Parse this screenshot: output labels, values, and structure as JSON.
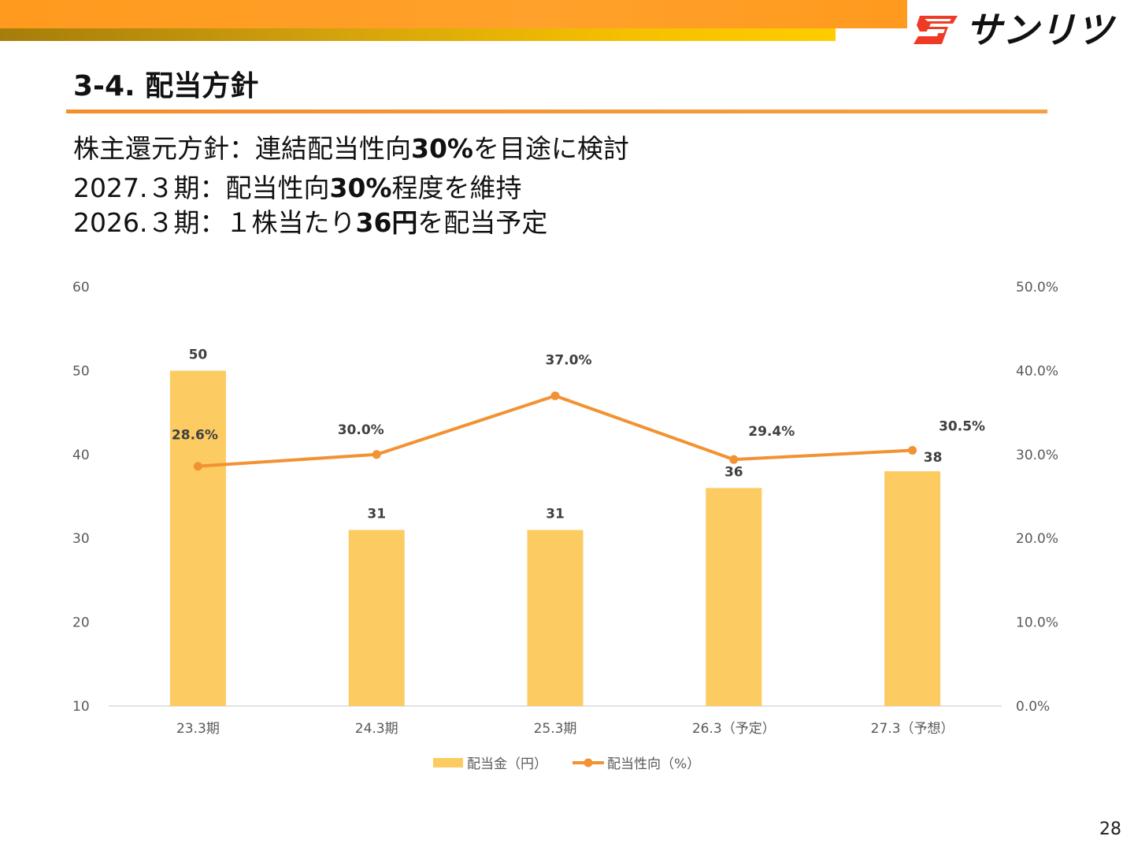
{
  "header": {
    "brand_text": "サンリツ",
    "brand_mark": "sanritsu-logo-icon"
  },
  "page_title": "3-4. 配当方針",
  "bullets": [
    {
      "pre": "株主還元方針：連結配当性向",
      "bold": "30%",
      "post": "を目途に検討"
    },
    {
      "pre": "2027.３期：配当性向",
      "bold": "30%",
      "post": "程度を維持"
    },
    {
      "pre": "2026.３期：１株当たり",
      "bold": "36円",
      "post": "を配当予定"
    }
  ],
  "chart_data": {
    "type": "bar",
    "categories": [
      "23.3期",
      "24.3期",
      "25.3期",
      "26.3（予定）",
      "27.3（予想）"
    ],
    "series": [
      {
        "name": "配当金（円）",
        "type": "bar",
        "axis": "left",
        "values": [
          50,
          31,
          31,
          36,
          38
        ],
        "labels": [
          "50",
          "31",
          "31",
          "36",
          "38"
        ],
        "color": "#fccb62"
      },
      {
        "name": "配当性向（%）",
        "type": "line",
        "axis": "right",
        "values": [
          28.6,
          30.0,
          37.0,
          29.4,
          30.5
        ],
        "labels": [
          "28.6%",
          "30.0%",
          "37.0%",
          "29.4%",
          "30.5%"
        ],
        "color": "#f29233"
      }
    ],
    "y_left": {
      "min": 10,
      "max": 60,
      "ticks": [
        "10",
        "20",
        "30",
        "40",
        "50",
        "60"
      ]
    },
    "y_right": {
      "min": 0,
      "max": 50,
      "ticks": [
        "0.0%",
        "10.0%",
        "20.0%",
        "30.0%",
        "40.0%",
        "50.0%"
      ]
    },
    "grid": false,
    "legend_position": "bottom"
  },
  "page_number": "28"
}
